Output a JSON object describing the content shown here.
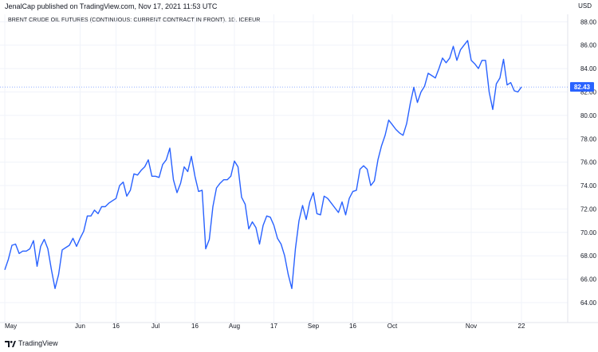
{
  "header": {
    "published": "JenalCap published on TradingView.com, Nov 17, 2021 11:53 UTC",
    "currency": "USD"
  },
  "footer": {
    "brand": "TradingView"
  },
  "colors": {
    "line": "#2962ff",
    "grid": "#f0f3fa",
    "axis_text": "#131722",
    "price_bg": "#2962ff"
  },
  "chart_data": {
    "type": "line",
    "title": "BRENT CRUDE OIL FUTURES (CONTINUOUS: CURRENT CONTRACT IN FRONT), 1D, ICEEUR",
    "ylim": [
      62.5,
      88.5
    ],
    "y_ticks": [
      64,
      66,
      68,
      70,
      72,
      74,
      76,
      78,
      80,
      82,
      84,
      86,
      88
    ],
    "y_tick_labels": [
      "64.00",
      "66.00",
      "68.00",
      "70.00",
      "72.00",
      "74.00",
      "76.00",
      "78.00",
      "80.00",
      "82.00",
      "84.00",
      "86.00",
      "88.00"
    ],
    "x_ticks": [
      {
        "label": "May",
        "i": 0
      },
      {
        "label": "Jun",
        "i": 21
      },
      {
        "label": "16",
        "i": 31
      },
      {
        "label": "Jul",
        "i": 42
      },
      {
        "label": "16",
        "i": 53
      },
      {
        "label": "Aug",
        "i": 64
      },
      {
        "label": "17",
        "i": 75
      },
      {
        "label": "Sep",
        "i": 86
      },
      {
        "label": "16",
        "i": 97
      },
      {
        "label": "Oct",
        "i": 108
      },
      {
        "label": "Nov",
        "i": 130
      },
      {
        "label": "22",
        "i": 144
      }
    ],
    "last_value": "82.43",
    "last_value_num": 82.43,
    "values": [
      66.8,
      67.7,
      68.9,
      69.0,
      68.2,
      68.4,
      68.4,
      68.6,
      69.3,
      67.1,
      68.8,
      69.4,
      68.6,
      66.8,
      65.2,
      66.4,
      68.5,
      68.7,
      68.9,
      69.5,
      68.8,
      69.5,
      70.1,
      71.4,
      71.4,
      71.9,
      71.6,
      72.2,
      72.2,
      72.5,
      72.7,
      72.9,
      74.0,
      74.3,
      73.1,
      73.6,
      75.0,
      74.9,
      75.3,
      75.6,
      76.2,
      74.8,
      74.8,
      74.7,
      75.8,
      76.2,
      77.2,
      74.5,
      73.4,
      74.2,
      75.6,
      75.2,
      76.5,
      74.8,
      73.5,
      73.6,
      68.6,
      69.4,
      72.2,
      73.8,
      74.2,
      74.5,
      74.5,
      74.8,
      76.1,
      75.6,
      73.0,
      72.4,
      70.3,
      70.9,
      70.4,
      69.0,
      70.6,
      71.4,
      71.3,
      70.6,
      69.5,
      69.0,
      68.0,
      66.4,
      65.2,
      68.6,
      71.0,
      72.3,
      71.1,
      72.6,
      73.4,
      71.6,
      71.5,
      73.1,
      72.9,
      72.5,
      72.1,
      71.7,
      72.6,
      71.5,
      72.9,
      73.5,
      73.6,
      75.4,
      75.7,
      75.4,
      74.0,
      74.4,
      76.2,
      77.4,
      78.3,
      79.6,
      79.2,
      78.8,
      78.5,
      78.3,
      79.3,
      81.0,
      82.4,
      81.1,
      82.0,
      82.5,
      83.6,
      83.4,
      83.2,
      84.0,
      84.9,
      84.5,
      84.9,
      85.9,
      84.7,
      85.6,
      86.0,
      86.4,
      84.7,
      84.4,
      84.0,
      84.7,
      84.7,
      82.0,
      80.5,
      82.7,
      83.2,
      84.8,
      82.6,
      82.8,
      82.1,
      82.0,
      82.43
    ]
  }
}
